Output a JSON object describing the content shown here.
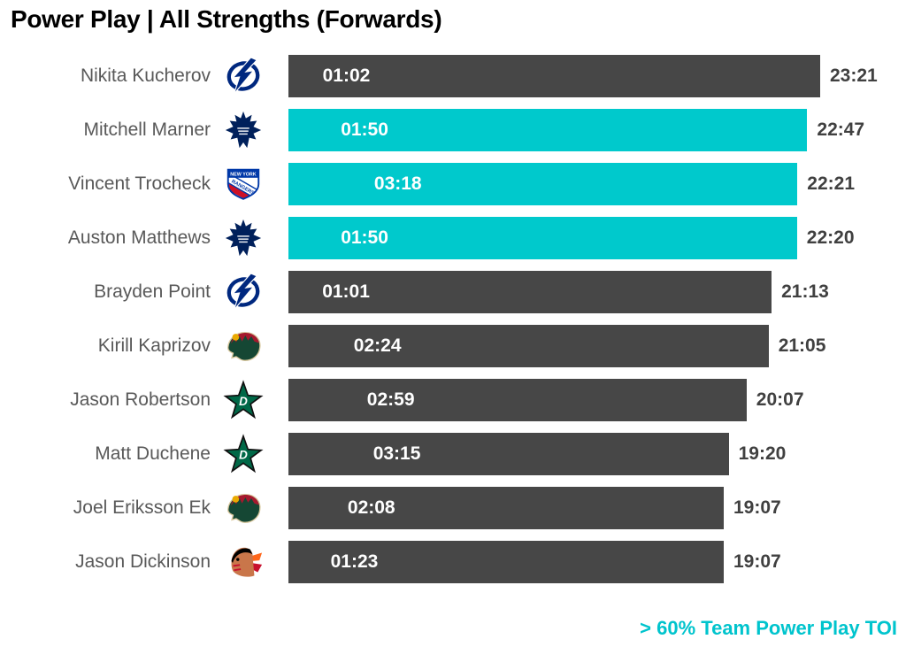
{
  "title": "Power Play | All Strengths (Forwards)",
  "legend": {
    "label": "> 60% Team Power Play TOI",
    "position": "bottom-right"
  },
  "colors": {
    "bar_default": "#474747",
    "bar_highlight": "#00c9cc",
    "bar_label": "#ffffff",
    "value_label": "#404040",
    "player_label": "#595959",
    "highlight_text": "#00c4cd",
    "title_text": "#000000"
  },
  "chart_data": {
    "type": "bar",
    "orientation": "horizontal",
    "title": "Power Play | All Strengths (Forwards)",
    "value_format": "mm:ss",
    "grid": false,
    "legend_position": "bottom-right",
    "bar_label_series": "power_play_toi",
    "end_label_series": "total_toi",
    "highlight_rule": "> 60% Team Power Play TOI",
    "players": [
      {
        "name": "Nikita Kucherov",
        "team_logo": "tampa-bay-lightning",
        "pp_toi": "01:02",
        "pp_seconds": 62,
        "total_toi": "23:21",
        "total_seconds": 1401,
        "highlighted": false
      },
      {
        "name": "Mitchell Marner",
        "team_logo": "toronto-maple-leafs",
        "pp_toi": "01:50",
        "pp_seconds": 110,
        "total_toi": "22:47",
        "total_seconds": 1367,
        "highlighted": true
      },
      {
        "name": "Vincent Trocheck",
        "team_logo": "new-york-rangers",
        "pp_toi": "03:18",
        "pp_seconds": 198,
        "total_toi": "22:21",
        "total_seconds": 1341,
        "highlighted": true
      },
      {
        "name": "Auston Matthews",
        "team_logo": "toronto-maple-leafs",
        "pp_toi": "01:50",
        "pp_seconds": 110,
        "total_toi": "22:20",
        "total_seconds": 1340,
        "highlighted": true
      },
      {
        "name": "Brayden Point",
        "team_logo": "tampa-bay-lightning",
        "pp_toi": "01:01",
        "pp_seconds": 61,
        "total_toi": "21:13",
        "total_seconds": 1273,
        "highlighted": false
      },
      {
        "name": "Kirill Kaprizov",
        "team_logo": "minnesota-wild",
        "pp_toi": "02:24",
        "pp_seconds": 144,
        "total_toi": "21:05",
        "total_seconds": 1265,
        "highlighted": false
      },
      {
        "name": "Jason Robertson",
        "team_logo": "dallas-stars",
        "pp_toi": "02:59",
        "pp_seconds": 179,
        "total_toi": "20:07",
        "total_seconds": 1207,
        "highlighted": false
      },
      {
        "name": "Matt Duchene",
        "team_logo": "dallas-stars",
        "pp_toi": "03:15",
        "pp_seconds": 195,
        "total_toi": "19:20",
        "total_seconds": 1160,
        "highlighted": false
      },
      {
        "name": "Joel Eriksson Ek",
        "team_logo": "minnesota-wild",
        "pp_toi": "02:08",
        "pp_seconds": 128,
        "total_toi": "19:07",
        "total_seconds": 1147,
        "highlighted": false
      },
      {
        "name": "Jason Dickinson",
        "team_logo": "chicago-blackhawks",
        "pp_toi": "01:23",
        "pp_seconds": 83,
        "total_toi": "19:07",
        "total_seconds": 1147,
        "highlighted": false
      }
    ]
  }
}
